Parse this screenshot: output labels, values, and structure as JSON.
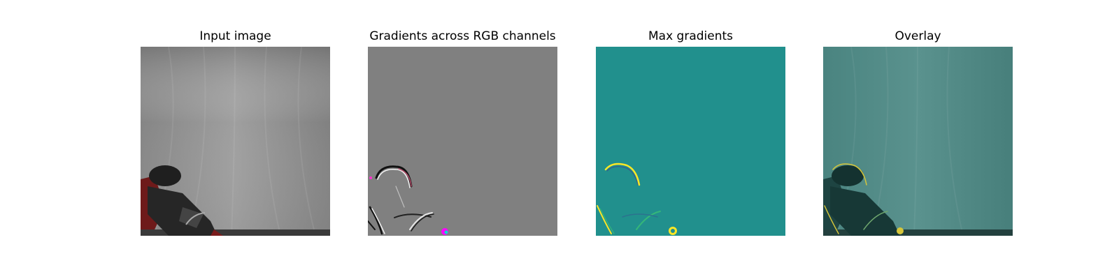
{
  "figure": {
    "panels": [
      {
        "id": "input",
        "title": "Input image"
      },
      {
        "id": "gradients-rgb",
        "title": "Gradients across RGB channels"
      },
      {
        "id": "max-gradients",
        "title": "Max gradients"
      },
      {
        "id": "overlay",
        "title": "Overlay"
      }
    ]
  },
  "colors": {
    "background": "#ffffff",
    "input_base": "#8c8c8c",
    "gradient_gray": "#808080",
    "max_gradient_teal": "#21908d",
    "overlay_teal": "#4e8783",
    "highlight_yellow": "#fde725",
    "highlight_magenta": "#ff00ff"
  }
}
